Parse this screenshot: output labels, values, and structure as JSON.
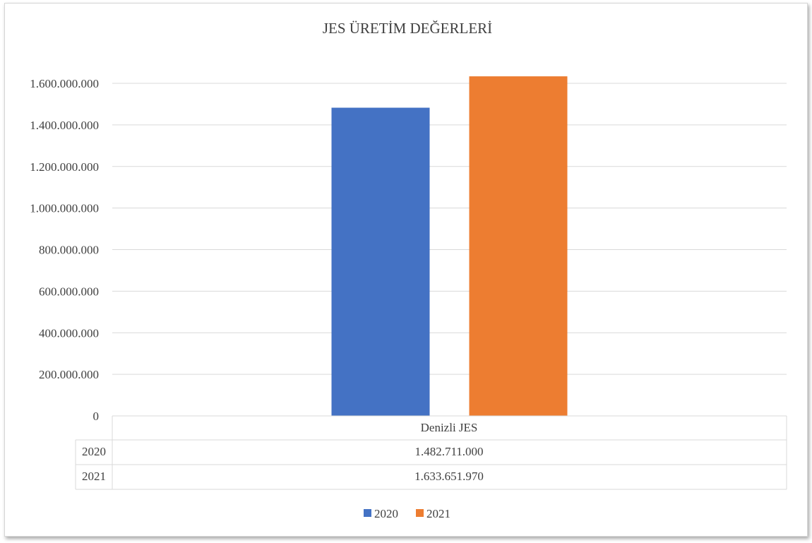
{
  "chart_data": {
    "type": "bar",
    "title": "JES ÜRETİM DEĞERLERİ",
    "categories": [
      "Denizli JES"
    ],
    "series": [
      {
        "name": "2020",
        "values": [
          1482711000
        ],
        "color": "#4472c4",
        "label": "1.482.711.000"
      },
      {
        "name": "2021",
        "values": [
          1633651970
        ],
        "color": "#ed7d31",
        "label": "1.633.651.970"
      }
    ],
    "yticks": [
      {
        "value": 0,
        "label": "0"
      },
      {
        "value": 200000000,
        "label": "200.000.000"
      },
      {
        "value": 400000000,
        "label": "400.000.000"
      },
      {
        "value": 600000000,
        "label": "600.000.000"
      },
      {
        "value": 800000000,
        "label": "800.000.000"
      },
      {
        "value": 1000000000,
        "label": "1.000.000.000"
      },
      {
        "value": 1200000000,
        "label": "1.200.000.000"
      },
      {
        "value": 1400000000,
        "label": "1.400.000.000"
      },
      {
        "value": 1600000000,
        "label": "1.600.000.000"
      }
    ],
    "ylim": [
      0,
      1600000000
    ],
    "grid": true,
    "legend": "bottom",
    "data_table": true
  }
}
